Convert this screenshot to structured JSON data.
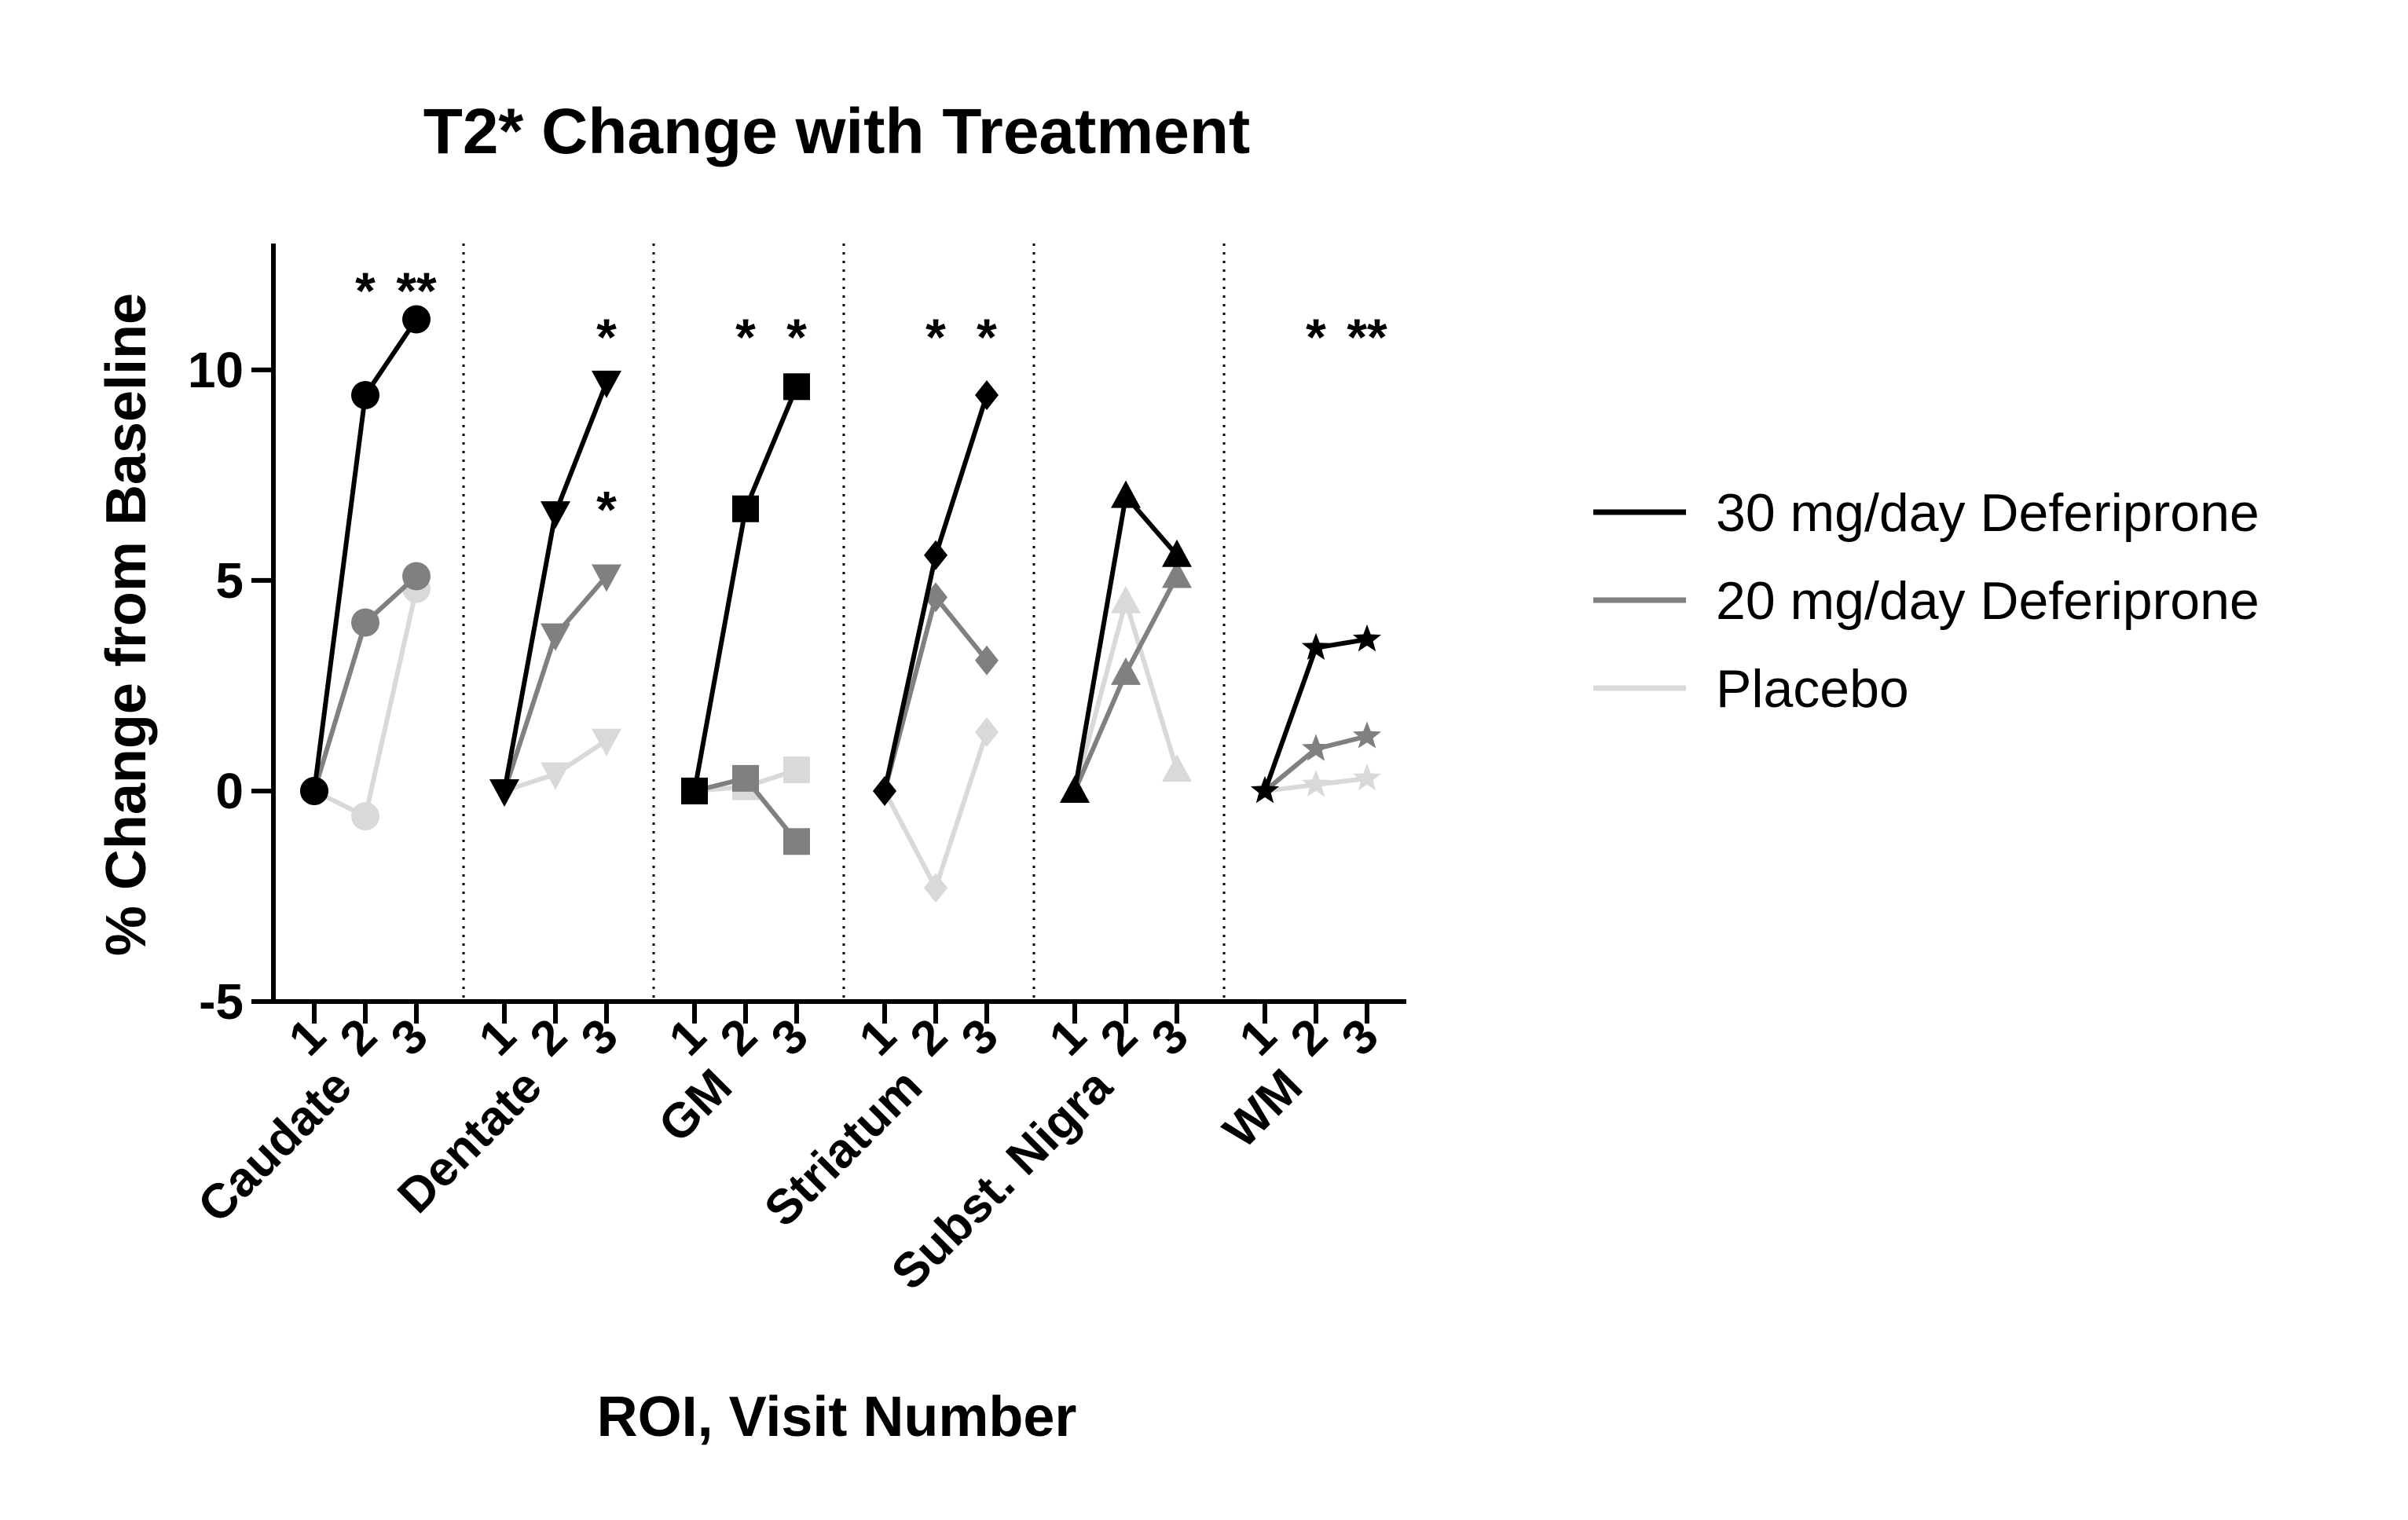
{
  "chart_data": {
    "type": "line",
    "title": "T2* Change with Treatment",
    "xlabel": "ROI, Visit Number",
    "ylabel": "% Change from Baseline",
    "ylim": [
      -5,
      13
    ],
    "yticks": [
      -5,
      0,
      5,
      10
    ],
    "groups": [
      {
        "name": "Caudate",
        "marker": "circle",
        "visits": [
          "1",
          "2",
          "3"
        ]
      },
      {
        "name": "Dentate",
        "marker": "triangle-down",
        "visits": [
          "1",
          "2",
          "3"
        ]
      },
      {
        "name": "GM",
        "marker": "square",
        "visits": [
          "1",
          "2",
          "3"
        ]
      },
      {
        "name": "Striatum",
        "marker": "diamond",
        "visits": [
          "1",
          "2",
          "3"
        ]
      },
      {
        "name": "Subst. Nigra",
        "marker": "triangle-up",
        "visits": [
          "1",
          "2",
          "3"
        ]
      },
      {
        "name": "WM",
        "marker": "star",
        "visits": [
          "1",
          "2",
          "3"
        ]
      }
    ],
    "series": [
      {
        "name": "Placebo",
        "color": "#d9d9d9",
        "values": [
          [
            0,
            -0.6,
            4.8
          ],
          [
            0,
            0.4,
            1.2
          ],
          [
            0,
            0.1,
            0.5
          ],
          [
            0,
            -2.3,
            1.4
          ],
          [
            0,
            4.5,
            0.5
          ],
          [
            0,
            0.15,
            0.3
          ]
        ]
      },
      {
        "name": "20 mg/day Deferiprone",
        "color": "#808080",
        "values": [
          [
            0,
            4.0,
            5.1
          ],
          [
            0,
            3.7,
            5.1
          ],
          [
            0,
            0.3,
            -1.2
          ],
          [
            0,
            4.6,
            3.1
          ],
          [
            0,
            2.8,
            5.1
          ],
          [
            0,
            1.0,
            1.3
          ]
        ]
      },
      {
        "name": "30 mg/day Deferiprone",
        "color": "#000000",
        "values": [
          [
            0,
            9.4,
            11.2
          ],
          [
            0,
            6.6,
            9.7
          ],
          [
            0,
            6.7,
            9.6
          ],
          [
            0,
            5.6,
            9.4
          ],
          [
            0,
            7.0,
            5.6
          ],
          [
            0,
            3.4,
            3.6
          ]
        ]
      }
    ],
    "significance": [
      {
        "group": 0,
        "visit": 2,
        "text": "*",
        "y": 12.2
      },
      {
        "group": 0,
        "visit": 3,
        "text": "**",
        "y": 12.2
      },
      {
        "group": 1,
        "visit": 3,
        "text": "*",
        "y": 11.1
      },
      {
        "group": 1,
        "visit": 3,
        "text": "*",
        "y": 7.0
      },
      {
        "group": 2,
        "visit": 2,
        "text": "*",
        "y": 11.1
      },
      {
        "group": 2,
        "visit": 3,
        "text": "*",
        "y": 11.1
      },
      {
        "group": 3,
        "visit": 2,
        "text": "*",
        "y": 11.1
      },
      {
        "group": 3,
        "visit": 3,
        "text": "*",
        "y": 11.1
      },
      {
        "group": 5,
        "visit": 2,
        "text": "*",
        "y": 11.1
      },
      {
        "group": 5,
        "visit": 3,
        "text": "**",
        "y": 11.1
      }
    ],
    "legend": {
      "position": "right",
      "entries": [
        "30 mg/day Deferiprone",
        "20 mg/day Deferiprone",
        "Placebo"
      ]
    }
  }
}
